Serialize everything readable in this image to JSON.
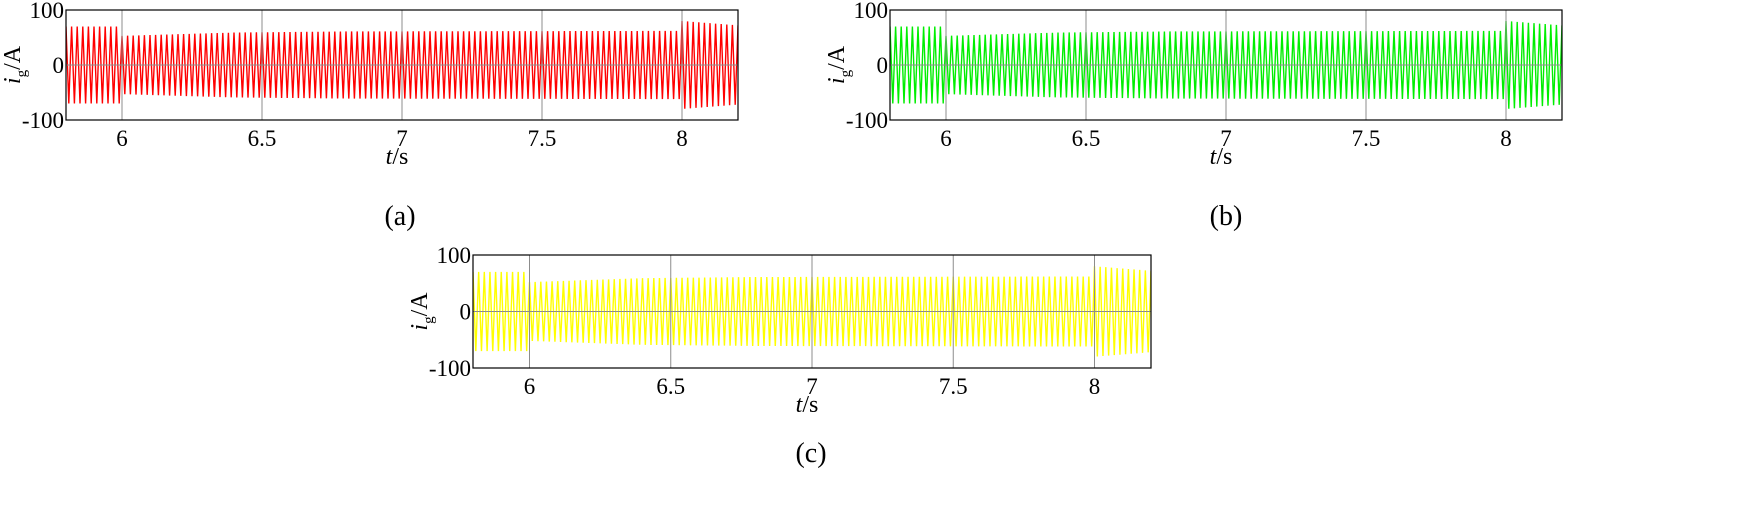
{
  "chart_data": [
    {
      "panel": "(a)",
      "type": "line",
      "color": "#ff0000",
      "xlabel": {
        "italic": "t",
        "rest": "/s"
      },
      "ylabel": {
        "italic": "i",
        "sub": "g",
        "rest": "/A"
      },
      "xlim": [
        5.8,
        8.2
      ],
      "ylim": [
        -100,
        100
      ],
      "xticks": [
        {
          "v": 6,
          "label": "6"
        },
        {
          "v": 6.5,
          "label": "6.5"
        },
        {
          "v": 7,
          "label": "7"
        },
        {
          "v": 7.5,
          "label": "7.5"
        },
        {
          "v": 8,
          "label": "8"
        }
      ],
      "yticks": [
        {
          "v": 100,
          "label": "100"
        },
        {
          "v": 0,
          "label": "0"
        },
        {
          "v": -100,
          "label": "-100"
        }
      ],
      "grid": true,
      "frequency_hz": 50,
      "envelope": [
        {
          "t": 5.8,
          "amp": 70
        },
        {
          "t": 5.999,
          "amp": 70
        },
        {
          "t": 6.0,
          "amp": 53
        },
        {
          "t": 6.4,
          "amp": 59
        },
        {
          "t": 6.8,
          "amp": 61
        },
        {
          "t": 7.999,
          "amp": 62
        },
        {
          "t": 8.0,
          "amp": 80
        },
        {
          "t": 8.2,
          "amp": 72
        }
      ]
    },
    {
      "panel": "(b)",
      "type": "line",
      "color": "#00ee00",
      "xlabel": {
        "italic": "t",
        "rest": "/s"
      },
      "ylabel": {
        "italic": "i",
        "sub": "g",
        "rest": "/A"
      },
      "xlim": [
        5.8,
        8.2
      ],
      "ylim": [
        -100,
        100
      ],
      "xticks": [
        {
          "v": 6,
          "label": "6"
        },
        {
          "v": 6.5,
          "label": "6.5"
        },
        {
          "v": 7,
          "label": "7"
        },
        {
          "v": 7.5,
          "label": "7.5"
        },
        {
          "v": 8,
          "label": "8"
        }
      ],
      "yticks": [
        {
          "v": 100,
          "label": "100"
        },
        {
          "v": 0,
          "label": "0"
        },
        {
          "v": -100,
          "label": "-100"
        }
      ],
      "grid": true,
      "frequency_hz": 50,
      "envelope": [
        {
          "t": 5.8,
          "amp": 70
        },
        {
          "t": 5.999,
          "amp": 70
        },
        {
          "t": 6.0,
          "amp": 53
        },
        {
          "t": 6.4,
          "amp": 59
        },
        {
          "t": 6.8,
          "amp": 61
        },
        {
          "t": 7.999,
          "amp": 62
        },
        {
          "t": 8.0,
          "amp": 80
        },
        {
          "t": 8.2,
          "amp": 72
        }
      ]
    },
    {
      "panel": "(c)",
      "type": "line",
      "color": "#ffff00",
      "xlabel": {
        "italic": "t",
        "rest": "/s"
      },
      "ylabel": {
        "italic": "i",
        "sub": "g",
        "rest": "/A"
      },
      "xlim": [
        5.8,
        8.2
      ],
      "ylim": [
        -100,
        100
      ],
      "xticks": [
        {
          "v": 6,
          "label": "6"
        },
        {
          "v": 6.5,
          "label": "6.5"
        },
        {
          "v": 7,
          "label": "7"
        },
        {
          "v": 7.5,
          "label": "7.5"
        },
        {
          "v": 8,
          "label": "8"
        }
      ],
      "yticks": [
        {
          "v": 100,
          "label": "100"
        },
        {
          "v": 0,
          "label": "0"
        },
        {
          "v": -100,
          "label": "-100"
        }
      ],
      "grid": true,
      "frequency_hz": 50,
      "envelope": [
        {
          "t": 5.8,
          "amp": 70
        },
        {
          "t": 5.999,
          "amp": 70
        },
        {
          "t": 6.0,
          "amp": 52
        },
        {
          "t": 6.4,
          "amp": 59
        },
        {
          "t": 6.8,
          "amp": 61
        },
        {
          "t": 7.999,
          "amp": 62
        },
        {
          "t": 8.0,
          "amp": 80
        },
        {
          "t": 8.2,
          "amp": 72
        }
      ]
    }
  ]
}
